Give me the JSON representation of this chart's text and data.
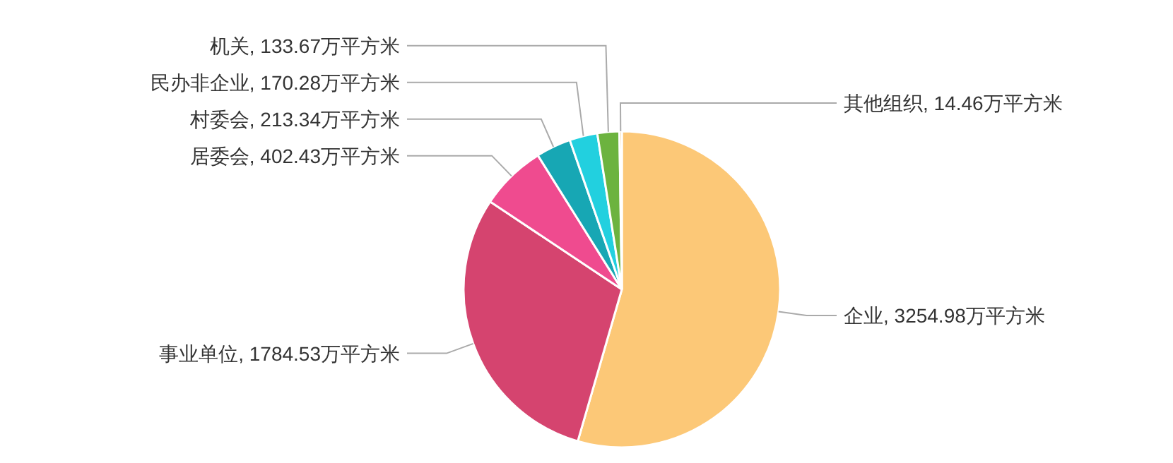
{
  "chart_data": {
    "type": "pie",
    "categories": [
      "企业",
      "事业单位",
      "居委会",
      "村委会",
      "民办非企业",
      "机关",
      "其他组织"
    ],
    "values": [
      3254.98,
      1784.53,
      402.43,
      213.34,
      170.28,
      133.67,
      14.46
    ],
    "colors": [
      "#fcc877",
      "#d5446f",
      "#ef4b8f",
      "#17a7b4",
      "#22d0df",
      "#6cb33f",
      "#e8a33a"
    ],
    "value_labels": [
      ", 3254.98万平方米",
      ", 1784.53万平方米",
      ", 402.43万平方米",
      ", 213.34万平方米",
      ", 170.28万平方米",
      ", 133.67万平方米",
      ", 14.46万平方米"
    ]
  }
}
